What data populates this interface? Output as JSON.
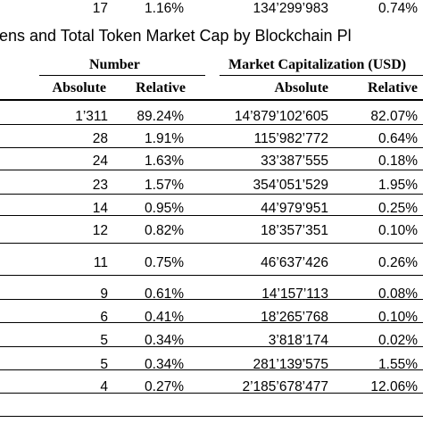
{
  "title": "okens and Total Token Market Cap by Blockchain Pl",
  "groups": {
    "number": "Number",
    "market_cap": "Market Capitalization (USD)"
  },
  "columns": {
    "num_abs": "Absolute",
    "num_rel": "Relative",
    "cap_abs": "Absolute",
    "cap_rel": "Relative"
  },
  "rows": [
    {
      "num_abs": "1’311",
      "num_rel": "89.24%",
      "cap_abs": "14’879’102’605",
      "cap_rel": "82.07%"
    },
    {
      "num_abs": "28",
      "num_rel": "1.91%",
      "cap_abs": "115’982’772",
      "cap_rel": "0.64%"
    },
    {
      "num_abs": "24",
      "num_rel": "1.63%",
      "cap_abs": "33’387’555",
      "cap_rel": "0.18%"
    },
    {
      "num_abs": "23",
      "num_rel": "1.57%",
      "cap_abs": "354’051’529",
      "cap_rel": "1.95%"
    },
    {
      "num_abs": "14",
      "num_rel": "0.95%",
      "cap_abs": "44’979’951",
      "cap_rel": "0.25%"
    },
    {
      "num_abs": "12",
      "num_rel": "0.82%",
      "cap_abs": "18’357’351",
      "cap_rel": "0.10%"
    },
    {
      "num_abs": "11",
      "num_rel": "0.75%",
      "cap_abs": "46’637’426",
      "cap_rel": "0.26%"
    },
    {
      "num_abs": "9",
      "num_rel": "0.61%",
      "cap_abs": "14’157’113",
      "cap_rel": "0.08%"
    },
    {
      "num_abs": "6",
      "num_rel": "0.41%",
      "cap_abs": "18’265’768",
      "cap_rel": "0.10%"
    },
    {
      "num_abs": "5",
      "num_rel": "0.34%",
      "cap_abs": "3’818’174",
      "cap_rel": "0.02%"
    },
    {
      "num_abs": "5",
      "num_rel": "0.34%",
      "cap_abs": "281’139’575",
      "cap_rel": "1.55%"
    },
    {
      "num_abs": "4",
      "num_rel": "0.27%",
      "cap_abs": "2’185’678’477",
      "cap_rel": "12.06%"
    },
    {
      "num_abs": "17",
      "num_rel": "1.16%",
      "cap_abs": "134’299’983",
      "cap_rel": "0.74%"
    }
  ]
}
